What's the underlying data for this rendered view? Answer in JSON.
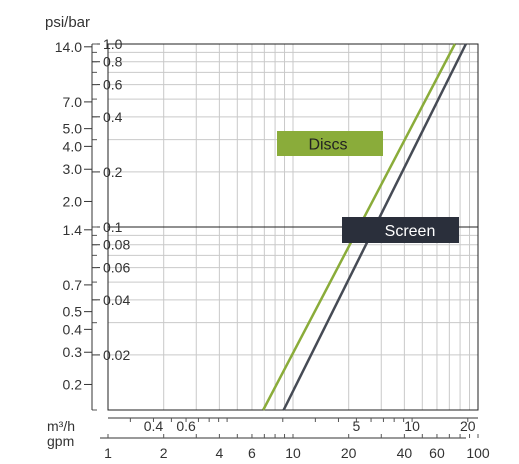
{
  "chart_data": {
    "type": "line",
    "left_axis_title": "psi/bar",
    "psi_ticks": [
      "14.0",
      "7.0",
      "5.0",
      "4.0",
      "3.0",
      "2.0",
      "1.4",
      "0.7",
      "0.5",
      "0.4",
      "0.3",
      "0.2"
    ],
    "bar_ticks": [
      "1.0",
      "0.8",
      "0.6",
      "0.4",
      "0.2",
      "0.1",
      "0.08",
      "0.06",
      "0.04",
      "0.02"
    ],
    "bar_range": [
      0.01,
      1.0
    ],
    "flow_m3h_label": "m³/h",
    "flow_m3h_ticks": [
      "0.4",
      "0.6",
      "5",
      "10",
      "20"
    ],
    "flow_gpm_label": "gpm",
    "flow_gpm_ticks": [
      "1",
      "2",
      "4",
      "6",
      "10",
      "20",
      "40",
      "60",
      "100"
    ],
    "flow_gpm_range": [
      1,
      100
    ],
    "reference_line_bar": 0.1,
    "series": [
      {
        "name": "Discs",
        "color": "#8aac3a",
        "points": [
          {
            "gpm": 6.9,
            "bar": 0.01
          },
          {
            "gpm": 75,
            "bar": 1.0
          }
        ]
      },
      {
        "name": "Screen",
        "color": "#464b55",
        "points": [
          {
            "gpm": 8.9,
            "bar": 0.01
          },
          {
            "gpm": 86,
            "bar": 1.0
          }
        ]
      }
    ],
    "label_box_colors": {
      "Discs": "#8aac3a",
      "Screen": "#2a2f3b"
    },
    "grid": true
  }
}
